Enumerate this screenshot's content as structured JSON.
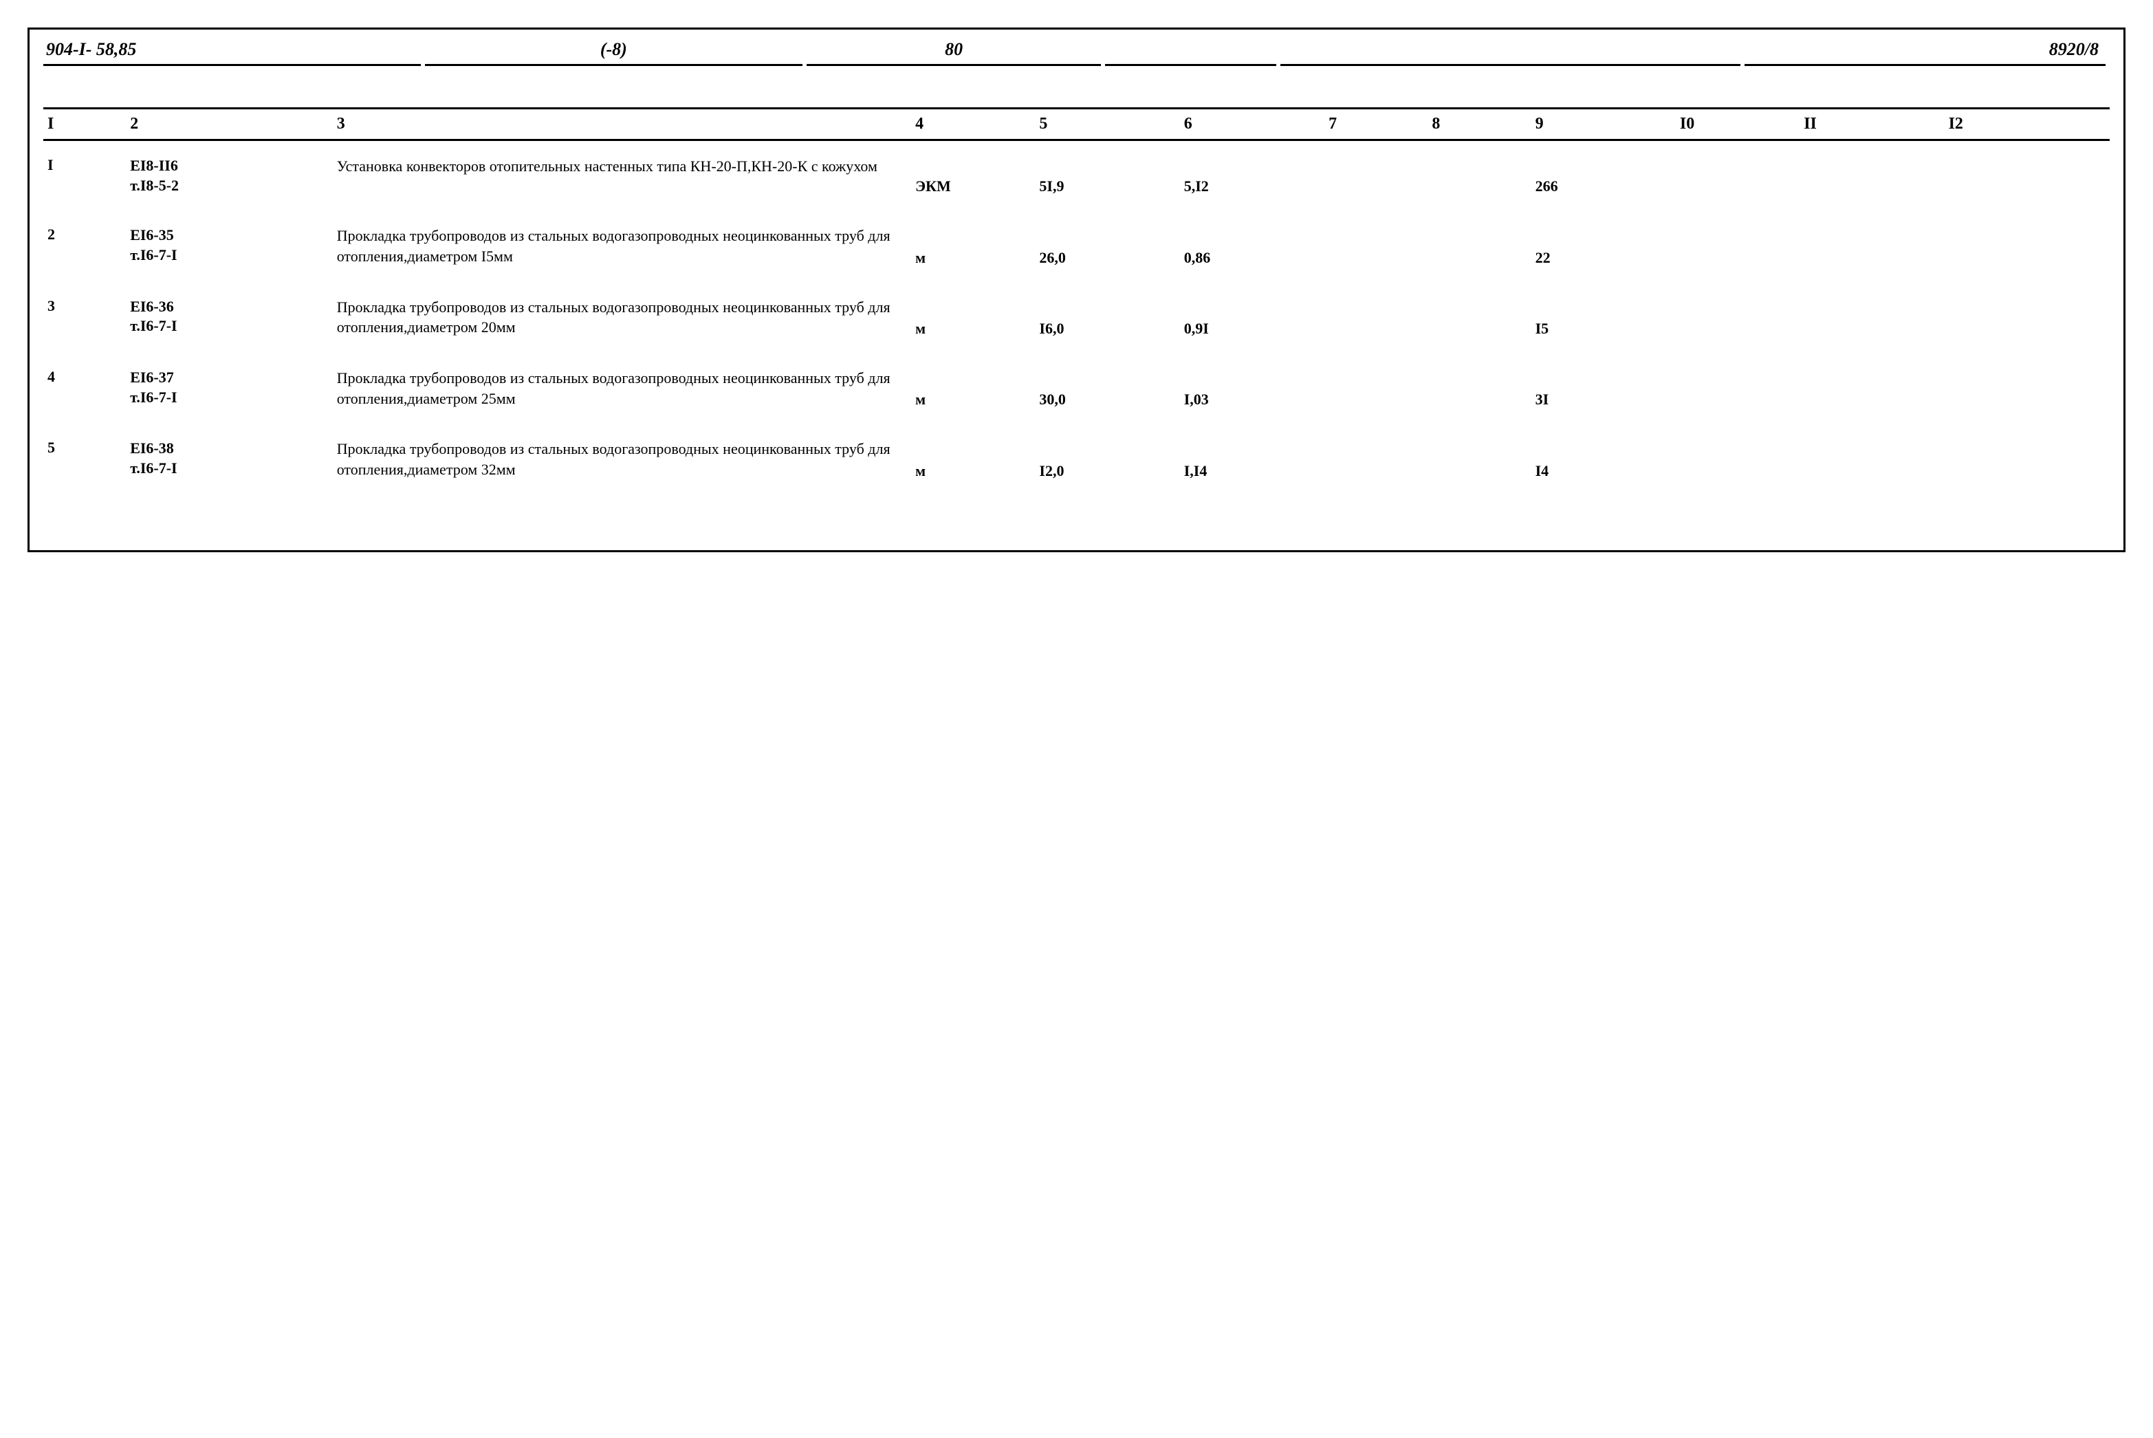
{
  "header": {
    "doc_number": "904-I- 58,85",
    "suffix": "(-8)",
    "page_number": "80",
    "code_right": "8920/8"
  },
  "table": {
    "type": "table",
    "column_headers": [
      "I",
      "2",
      "3",
      "4",
      "5",
      "6",
      "7",
      "8",
      "9",
      "I0",
      "II",
      "I2"
    ],
    "rows": [
      {
        "n": "I",
        "code_line1": "ЕI8-II6",
        "code_line2": "т.I8-5-2",
        "description": "Установка конвекторов отопительных настенных типа КН-20-П,КН-20-К с кожухом",
        "unit": "ЭКМ",
        "c5": "5I,9",
        "c6": "5,I2",
        "c7": "",
        "c8": "",
        "c9": "266",
        "c10": "",
        "c11": "",
        "c12": ""
      },
      {
        "n": "2",
        "code_line1": "ЕI6-35",
        "code_line2": "т.I6-7-I",
        "description": "Прокладка трубопроводов из стальных водогазопроводных неоцинкованных труб для отопления,диаметром I5мм",
        "unit": "м",
        "c5": "26,0",
        "c6": "0,86",
        "c7": "",
        "c8": "",
        "c9": "22",
        "c10": "",
        "c11": "",
        "c12": ""
      },
      {
        "n": "3",
        "code_line1": "ЕI6-36",
        "code_line2": "т.I6-7-I",
        "description": "Прокладка трубопроводов из стальных водогазопроводных неоцинкованных труб для отопления,диаметром 20мм",
        "unit": "м",
        "c5": "I6,0",
        "c6": "0,9I",
        "c7": "",
        "c8": "",
        "c9": "I5",
        "c10": "",
        "c11": "",
        "c12": ""
      },
      {
        "n": "4",
        "code_line1": "ЕI6-37",
        "code_line2": "т.I6-7-I",
        "description": "Прокладка трубопроводов из стальных водогазопроводных неоцинкованных труб для отопления,диаметром 25мм",
        "unit": "м",
        "c5": "30,0",
        "c6": "I,03",
        "c7": "",
        "c8": "",
        "c9": "3I",
        "c10": "",
        "c11": "",
        "c12": ""
      },
      {
        "n": "5",
        "code_line1": "ЕI6-38",
        "code_line2": "т.I6-7-I",
        "description": "Прокладка трубопроводов из стальных водогазопроводных неоцинкованных труб для отопления,диаметром 32мм",
        "unit": "м",
        "c5": "I2,0",
        "c6": "I,I4",
        "c7": "",
        "c8": "",
        "c9": "I4",
        "c10": "",
        "c11": "",
        "c12": ""
      }
    ]
  }
}
